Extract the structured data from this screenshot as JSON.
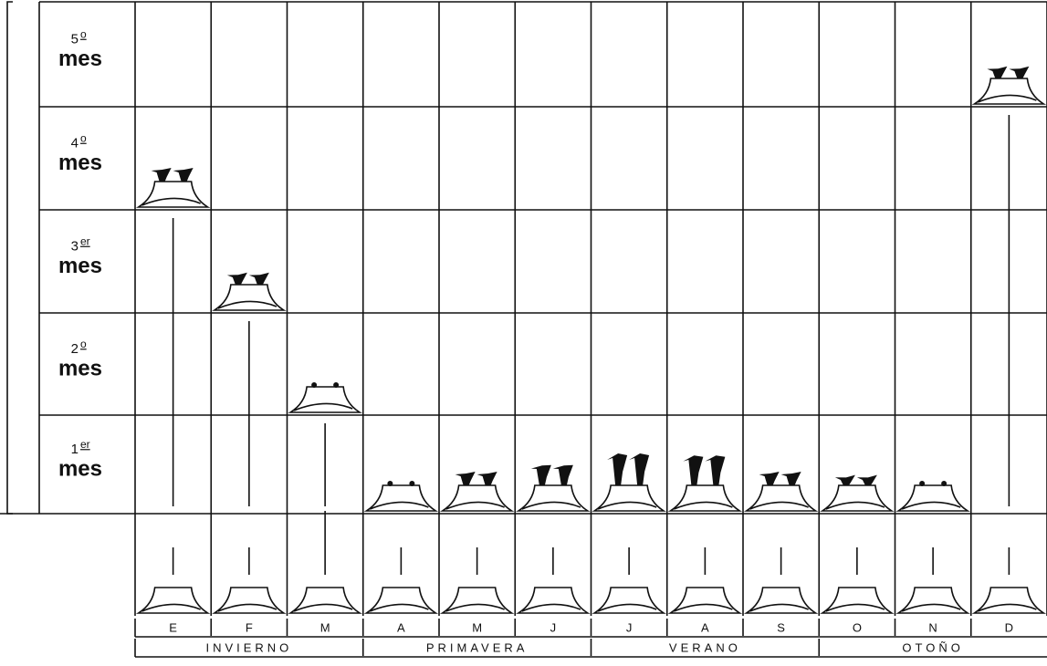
{
  "rows": [
    {
      "number": "5",
      "suffix": "o",
      "word": "mes"
    },
    {
      "number": "4",
      "suffix": "o",
      "word": "mes"
    },
    {
      "number": "3",
      "suffix": "er",
      "word": "mes"
    },
    {
      "number": "2",
      "suffix": "o",
      "word": "mes"
    },
    {
      "number": "1",
      "suffix": "er",
      "word": "mes"
    }
  ],
  "months": [
    "E",
    "F",
    "M",
    "A",
    "M",
    "J",
    "J",
    "A",
    "S",
    "O",
    "N",
    "D"
  ],
  "seasons": [
    "INVIERNO",
    "PRIMAVERA",
    "VERANO",
    "OTOÑO"
  ]
}
